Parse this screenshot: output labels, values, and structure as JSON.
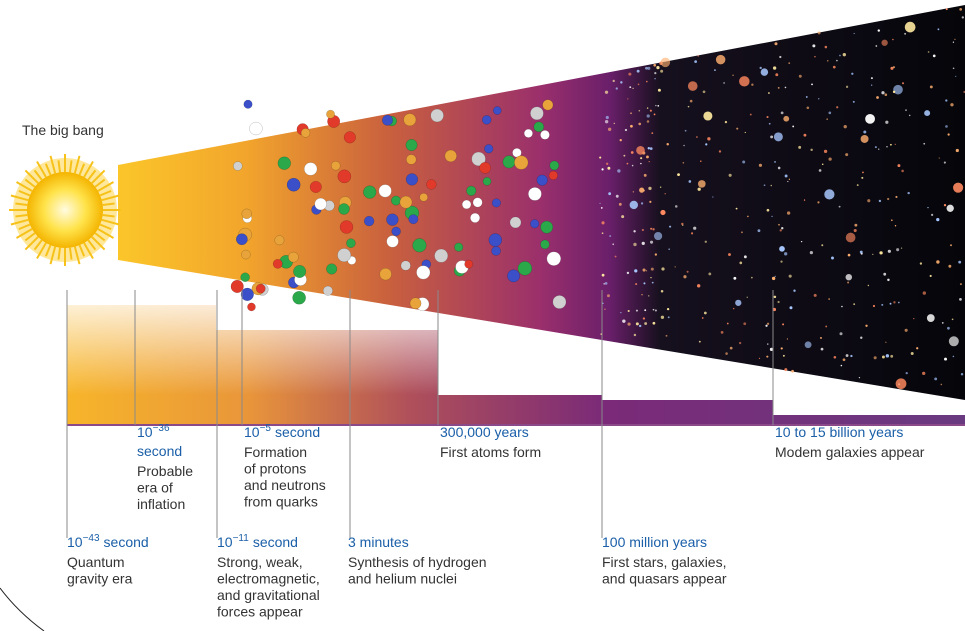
{
  "title": "The big bang",
  "events": [
    {
      "time": {
        "base": "10",
        "exp": "−43",
        "unit": "second"
      },
      "description": [
        "Quantum",
        "gravity era"
      ]
    },
    {
      "time": {
        "base": "10",
        "exp": "−36",
        "unit": "second"
      },
      "description": [
        "Probable",
        "era of",
        "inflation"
      ]
    },
    {
      "time": {
        "base": "10",
        "exp": "−11",
        "unit": "second"
      },
      "description": [
        "Strong, weak,",
        "electromagnetic,",
        "and gravitational",
        "forces appear"
      ]
    },
    {
      "time": {
        "base": "10",
        "exp": "−5",
        "unit": "second"
      },
      "description": [
        "Formation",
        "of protons",
        "and neutrons",
        "from quarks"
      ]
    },
    {
      "time": {
        "text": "3 minutes"
      },
      "description": [
        "Synthesis of hydrogen",
        "and helium nuclei"
      ]
    },
    {
      "time": {
        "text": "300,000 years"
      },
      "description": [
        "First atoms form"
      ]
    },
    {
      "time": {
        "text": "100 million years"
      },
      "description": [
        "First stars, galaxies,",
        "and quasars appear"
      ]
    },
    {
      "time": {
        "text": "10 to 15 billion years"
      },
      "description": [
        "Modem galaxies appear"
      ]
    }
  ]
}
